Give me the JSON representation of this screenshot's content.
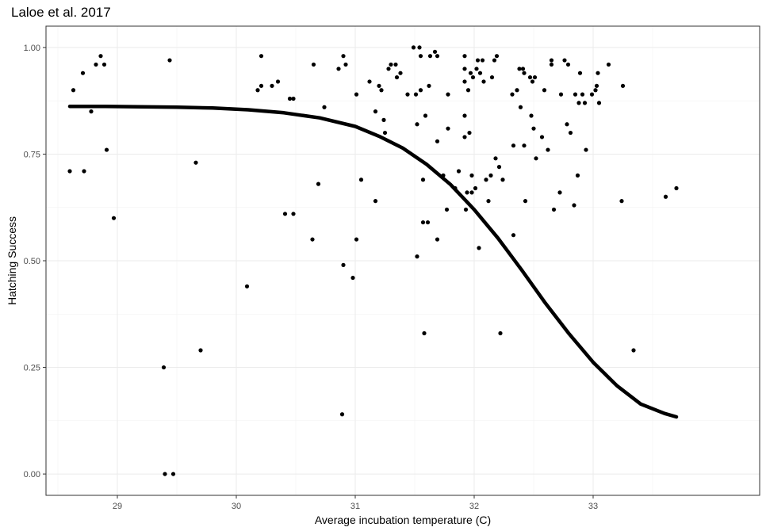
{
  "chart_data": {
    "type": "scatter",
    "title": "Laloe et al. 2017",
    "xlabel": "Average incubation temperature (C)",
    "ylabel": "Hatching Success",
    "xlim": [
      28.4,
      34.4
    ],
    "ylim": [
      -0.05,
      1.05
    ],
    "x_ticks": [
      29,
      30,
      31,
      32,
      33
    ],
    "x_tick_labels": [
      "29",
      "30",
      "31",
      "32",
      "33"
    ],
    "y_ticks": [
      0.0,
      0.25,
      0.5,
      0.75,
      1.0
    ],
    "y_tick_labels": [
      "0.00",
      "0.25",
      "0.50",
      "0.75",
      "1.00"
    ],
    "grid": true,
    "points": [
      [
        28.63,
        0.9
      ],
      [
        28.71,
        0.94
      ],
      [
        28.6,
        0.71
      ],
      [
        28.72,
        0.71
      ],
      [
        28.78,
        0.85
      ],
      [
        28.82,
        0.96
      ],
      [
        28.86,
        0.98
      ],
      [
        28.89,
        0.96
      ],
      [
        28.91,
        0.76
      ],
      [
        28.97,
        0.6
      ],
      [
        29.39,
        0.25
      ],
      [
        29.4,
        0.0
      ],
      [
        29.44,
        0.97
      ],
      [
        29.47,
        0.0
      ],
      [
        29.66,
        0.73
      ],
      [
        29.7,
        0.29
      ],
      [
        30.09,
        0.44
      ],
      [
        30.18,
        0.9
      ],
      [
        30.21,
        0.98
      ],
      [
        30.21,
        0.91
      ],
      [
        30.3,
        0.91
      ],
      [
        30.35,
        0.92
      ],
      [
        30.41,
        0.61
      ],
      [
        30.45,
        0.88
      ],
      [
        30.48,
        0.88
      ],
      [
        30.48,
        0.61
      ],
      [
        30.64,
        0.55
      ],
      [
        30.65,
        0.96
      ],
      [
        30.69,
        0.68
      ],
      [
        30.74,
        0.86
      ],
      [
        30.86,
        0.95
      ],
      [
        30.89,
        0.14
      ],
      [
        30.9,
        0.98
      ],
      [
        30.9,
        0.49
      ],
      [
        30.92,
        0.96
      ],
      [
        30.98,
        0.46
      ],
      [
        31.01,
        0.89
      ],
      [
        31.01,
        0.55
      ],
      [
        31.05,
        0.69
      ],
      [
        31.12,
        0.92
      ],
      [
        31.17,
        0.64
      ],
      [
        31.17,
        0.85
      ],
      [
        31.2,
        0.91
      ],
      [
        31.22,
        0.9
      ],
      [
        31.24,
        0.83
      ],
      [
        31.25,
        0.8
      ],
      [
        31.28,
        0.95
      ],
      [
        31.3,
        0.96
      ],
      [
        31.34,
        0.96
      ],
      [
        31.35,
        0.93
      ],
      [
        31.38,
        0.94
      ],
      [
        31.44,
        0.89
      ],
      [
        31.49,
        1.0
      ],
      [
        31.51,
        0.89
      ],
      [
        31.52,
        0.51
      ],
      [
        31.52,
        0.82
      ],
      [
        31.54,
        1.0
      ],
      [
        31.55,
        0.98
      ],
      [
        31.55,
        0.9
      ],
      [
        31.57,
        0.59
      ],
      [
        31.57,
        0.69
      ],
      [
        31.58,
        0.33
      ],
      [
        31.59,
        0.84
      ],
      [
        31.61,
        0.59
      ],
      [
        31.62,
        0.91
      ],
      [
        31.63,
        0.98
      ],
      [
        31.67,
        0.99
      ],
      [
        31.69,
        0.98
      ],
      [
        31.69,
        0.78
      ],
      [
        31.69,
        0.55
      ],
      [
        31.74,
        0.7
      ],
      [
        31.77,
        0.62
      ],
      [
        31.78,
        0.81
      ],
      [
        31.78,
        0.89
      ],
      [
        31.84,
        0.67
      ],
      [
        31.87,
        0.71
      ],
      [
        31.92,
        0.98
      ],
      [
        31.92,
        0.95
      ],
      [
        31.92,
        0.92
      ],
      [
        31.92,
        0.84
      ],
      [
        31.92,
        0.79
      ],
      [
        31.93,
        0.62
      ],
      [
        31.94,
        0.66
      ],
      [
        31.95,
        0.9
      ],
      [
        31.96,
        0.8
      ],
      [
        31.97,
        0.94
      ],
      [
        31.98,
        0.66
      ],
      [
        31.98,
        0.7
      ],
      [
        31.99,
        0.93
      ],
      [
        32.01,
        0.67
      ],
      [
        32.02,
        0.95
      ],
      [
        32.03,
        0.97
      ],
      [
        32.04,
        0.53
      ],
      [
        32.05,
        0.94
      ],
      [
        32.07,
        0.97
      ],
      [
        32.08,
        0.92
      ],
      [
        32.1,
        0.69
      ],
      [
        32.12,
        0.64
      ],
      [
        32.14,
        0.7
      ],
      [
        32.15,
        0.93
      ],
      [
        32.17,
        0.97
      ],
      [
        32.18,
        0.74
      ],
      [
        32.19,
        0.98
      ],
      [
        32.21,
        0.72
      ],
      [
        32.22,
        0.33
      ],
      [
        32.24,
        0.69
      ],
      [
        32.32,
        0.89
      ],
      [
        32.33,
        0.77
      ],
      [
        32.33,
        0.56
      ],
      [
        32.36,
        0.9
      ],
      [
        32.38,
        0.95
      ],
      [
        32.39,
        0.86
      ],
      [
        32.41,
        0.95
      ],
      [
        32.42,
        0.94
      ],
      [
        32.42,
        0.77
      ],
      [
        32.43,
        0.64
      ],
      [
        32.47,
        0.93
      ],
      [
        32.48,
        0.84
      ],
      [
        32.49,
        0.92
      ],
      [
        32.5,
        0.81
      ],
      [
        32.51,
        0.93
      ],
      [
        32.52,
        0.74
      ],
      [
        32.57,
        0.79
      ],
      [
        32.59,
        0.9
      ],
      [
        32.62,
        0.76
      ],
      [
        32.65,
        0.96
      ],
      [
        32.65,
        0.97
      ],
      [
        32.67,
        0.62
      ],
      [
        32.72,
        0.66
      ],
      [
        32.73,
        0.89
      ],
      [
        32.76,
        0.97
      ],
      [
        32.78,
        0.82
      ],
      [
        32.79,
        0.96
      ],
      [
        32.81,
        0.8
      ],
      [
        32.84,
        0.63
      ],
      [
        32.85,
        0.89
      ],
      [
        32.87,
        0.7
      ],
      [
        32.88,
        0.87
      ],
      [
        32.89,
        0.94
      ],
      [
        32.91,
        0.89
      ],
      [
        32.93,
        0.87
      ],
      [
        32.94,
        0.76
      ],
      [
        32.99,
        0.89
      ],
      [
        33.02,
        0.9
      ],
      [
        33.03,
        0.91
      ],
      [
        33.04,
        0.94
      ],
      [
        33.05,
        0.87
      ],
      [
        33.13,
        0.96
      ],
      [
        33.24,
        0.64
      ],
      [
        33.25,
        0.91
      ],
      [
        33.34,
        0.29
      ],
      [
        33.61,
        0.65
      ],
      [
        33.7,
        0.67
      ]
    ],
    "fit_line": {
      "x": [
        28.6,
        28.9,
        29.2,
        29.5,
        29.8,
        30.1,
        30.4,
        30.7,
        31.0,
        31.2,
        31.4,
        31.6,
        31.8,
        32.0,
        32.2,
        32.4,
        32.6,
        32.8,
        33.0,
        33.2,
        33.4,
        33.6,
        33.7
      ],
      "y": [
        0.862,
        0.862,
        0.861,
        0.86,
        0.858,
        0.854,
        0.847,
        0.835,
        0.815,
        0.792,
        0.764,
        0.726,
        0.679,
        0.62,
        0.553,
        0.478,
        0.4,
        0.328,
        0.262,
        0.207,
        0.164,
        0.142,
        0.134
      ]
    }
  }
}
